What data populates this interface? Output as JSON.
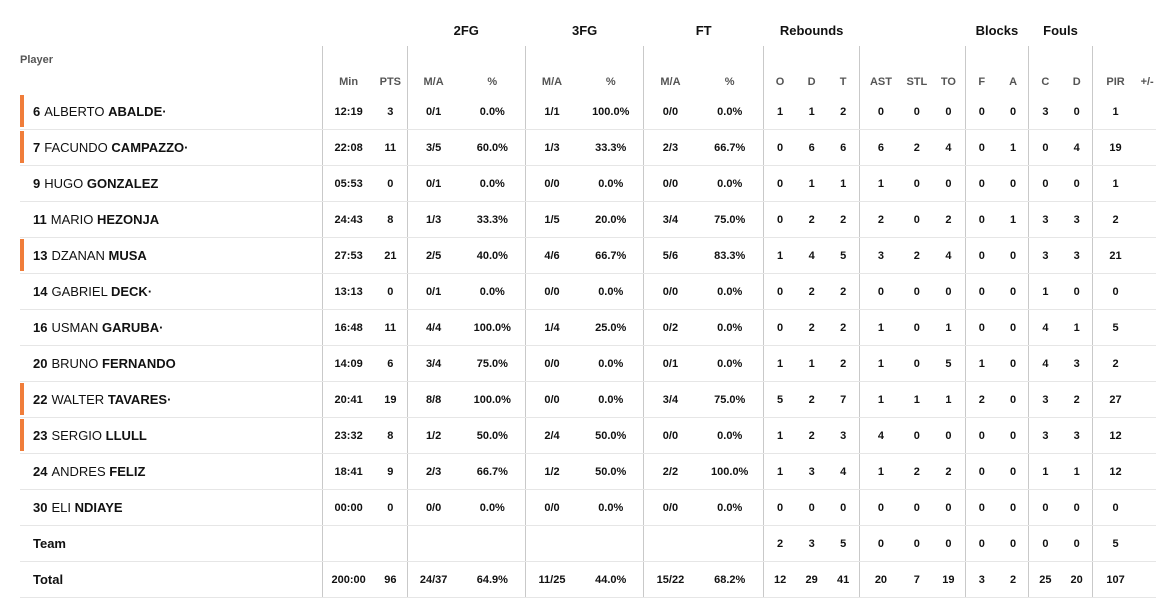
{
  "groups": {
    "fg2": "2FG",
    "fg3": "3FG",
    "ft": "FT",
    "rebounds": "Rebounds",
    "blocks": "Blocks",
    "fouls": "Fouls"
  },
  "headers": {
    "player": "Player",
    "min": "Min",
    "pts": "PTS",
    "ma": "M/A",
    "pct": "%",
    "o": "O",
    "d": "D",
    "t": "T",
    "ast": "AST",
    "stl": "STL",
    "to": "TO",
    "f": "F",
    "a": "A",
    "c": "C",
    "fd": "D",
    "pir": "PIR",
    "pm": "+/-"
  },
  "colors": {
    "starter_marker": "#f07d3a"
  },
  "players": [
    {
      "num": "6",
      "first": "ALBERTO",
      "last": "ABALDE",
      "mark": "·",
      "starter": true,
      "min": "12:19",
      "pts": "3",
      "fg2_ma": "0/1",
      "fg2_pct": "0.0%",
      "fg3_ma": "1/1",
      "fg3_pct": "100.0%",
      "ft_ma": "0/0",
      "ft_pct": "0.0%",
      "o": "1",
      "d": "1",
      "t": "2",
      "ast": "0",
      "stl": "0",
      "to": "0",
      "bf": "0",
      "ba": "0",
      "fc": "3",
      "fd": "0",
      "pir": "1",
      "pm": ""
    },
    {
      "num": "7",
      "first": "FACUNDO",
      "last": "CAMPAZZO",
      "mark": "·",
      "starter": true,
      "min": "22:08",
      "pts": "11",
      "fg2_ma": "3/5",
      "fg2_pct": "60.0%",
      "fg3_ma": "1/3",
      "fg3_pct": "33.3%",
      "ft_ma": "2/3",
      "ft_pct": "66.7%",
      "o": "0",
      "d": "6",
      "t": "6",
      "ast": "6",
      "stl": "2",
      "to": "4",
      "bf": "0",
      "ba": "1",
      "fc": "0",
      "fd": "4",
      "pir": "19",
      "pm": ""
    },
    {
      "num": "9",
      "first": "HUGO",
      "last": "GONZALEZ",
      "mark": "",
      "starter": false,
      "min": "05:53",
      "pts": "0",
      "fg2_ma": "0/1",
      "fg2_pct": "0.0%",
      "fg3_ma": "0/0",
      "fg3_pct": "0.0%",
      "ft_ma": "0/0",
      "ft_pct": "0.0%",
      "o": "0",
      "d": "1",
      "t": "1",
      "ast": "1",
      "stl": "0",
      "to": "0",
      "bf": "0",
      "ba": "0",
      "fc": "0",
      "fd": "0",
      "pir": "1",
      "pm": ""
    },
    {
      "num": "11",
      "first": "MARIO",
      "last": "HEZONJA",
      "mark": "",
      "starter": false,
      "min": "24:43",
      "pts": "8",
      "fg2_ma": "1/3",
      "fg2_pct": "33.3%",
      "fg3_ma": "1/5",
      "fg3_pct": "20.0%",
      "ft_ma": "3/4",
      "ft_pct": "75.0%",
      "o": "0",
      "d": "2",
      "t": "2",
      "ast": "2",
      "stl": "0",
      "to": "2",
      "bf": "0",
      "ba": "1",
      "fc": "3",
      "fd": "3",
      "pir": "2",
      "pm": ""
    },
    {
      "num": "13",
      "first": "DZANAN",
      "last": "MUSA",
      "mark": "",
      "starter": true,
      "min": "27:53",
      "pts": "21",
      "fg2_ma": "2/5",
      "fg2_pct": "40.0%",
      "fg3_ma": "4/6",
      "fg3_pct": "66.7%",
      "ft_ma": "5/6",
      "ft_pct": "83.3%",
      "o": "1",
      "d": "4",
      "t": "5",
      "ast": "3",
      "stl": "2",
      "to": "4",
      "bf": "0",
      "ba": "0",
      "fc": "3",
      "fd": "3",
      "pir": "21",
      "pm": ""
    },
    {
      "num": "14",
      "first": "GABRIEL",
      "last": "DECK",
      "mark": "·",
      "starter": false,
      "min": "13:13",
      "pts": "0",
      "fg2_ma": "0/1",
      "fg2_pct": "0.0%",
      "fg3_ma": "0/0",
      "fg3_pct": "0.0%",
      "ft_ma": "0/0",
      "ft_pct": "0.0%",
      "o": "0",
      "d": "2",
      "t": "2",
      "ast": "0",
      "stl": "0",
      "to": "0",
      "bf": "0",
      "ba": "0",
      "fc": "1",
      "fd": "0",
      "pir": "0",
      "pm": ""
    },
    {
      "num": "16",
      "first": "USMAN",
      "last": "GARUBA",
      "mark": "·",
      "starter": false,
      "min": "16:48",
      "pts": "11",
      "fg2_ma": "4/4",
      "fg2_pct": "100.0%",
      "fg3_ma": "1/4",
      "fg3_pct": "25.0%",
      "ft_ma": "0/2",
      "ft_pct": "0.0%",
      "o": "0",
      "d": "2",
      "t": "2",
      "ast": "1",
      "stl": "0",
      "to": "1",
      "bf": "0",
      "ba": "0",
      "fc": "4",
      "fd": "1",
      "pir": "5",
      "pm": ""
    },
    {
      "num": "20",
      "first": "BRUNO",
      "last": "FERNANDO",
      "mark": "",
      "starter": false,
      "min": "14:09",
      "pts": "6",
      "fg2_ma": "3/4",
      "fg2_pct": "75.0%",
      "fg3_ma": "0/0",
      "fg3_pct": "0.0%",
      "ft_ma": "0/1",
      "ft_pct": "0.0%",
      "o": "1",
      "d": "1",
      "t": "2",
      "ast": "1",
      "stl": "0",
      "to": "5",
      "bf": "1",
      "ba": "0",
      "fc": "4",
      "fd": "3",
      "pir": "2",
      "pm": ""
    },
    {
      "num": "22",
      "first": "WALTER",
      "last": "TAVARES",
      "mark": "·",
      "starter": true,
      "min": "20:41",
      "pts": "19",
      "fg2_ma": "8/8",
      "fg2_pct": "100.0%",
      "fg3_ma": "0/0",
      "fg3_pct": "0.0%",
      "ft_ma": "3/4",
      "ft_pct": "75.0%",
      "o": "5",
      "d": "2",
      "t": "7",
      "ast": "1",
      "stl": "1",
      "to": "1",
      "bf": "2",
      "ba": "0",
      "fc": "3",
      "fd": "2",
      "pir": "27",
      "pm": ""
    },
    {
      "num": "23",
      "first": "SERGIO",
      "last": "LLULL",
      "mark": "",
      "starter": true,
      "min": "23:32",
      "pts": "8",
      "fg2_ma": "1/2",
      "fg2_pct": "50.0%",
      "fg3_ma": "2/4",
      "fg3_pct": "50.0%",
      "ft_ma": "0/0",
      "ft_pct": "0.0%",
      "o": "1",
      "d": "2",
      "t": "3",
      "ast": "4",
      "stl": "0",
      "to": "0",
      "bf": "0",
      "ba": "0",
      "fc": "3",
      "fd": "3",
      "pir": "12",
      "pm": ""
    },
    {
      "num": "24",
      "first": "ANDRES",
      "last": "FELIZ",
      "mark": "",
      "starter": false,
      "min": "18:41",
      "pts": "9",
      "fg2_ma": "2/3",
      "fg2_pct": "66.7%",
      "fg3_ma": "1/2",
      "fg3_pct": "50.0%",
      "ft_ma": "2/2",
      "ft_pct": "100.0%",
      "o": "1",
      "d": "3",
      "t": "4",
      "ast": "1",
      "stl": "2",
      "to": "2",
      "bf": "0",
      "ba": "0",
      "fc": "1",
      "fd": "1",
      "pir": "12",
      "pm": ""
    },
    {
      "num": "30",
      "first": "ELI",
      "last": "NDIAYE",
      "mark": "",
      "starter": false,
      "min": "00:00",
      "pts": "0",
      "fg2_ma": "0/0",
      "fg2_pct": "0.0%",
      "fg3_ma": "0/0",
      "fg3_pct": "0.0%",
      "ft_ma": "0/0",
      "ft_pct": "0.0%",
      "o": "0",
      "d": "0",
      "t": "0",
      "ast": "0",
      "stl": "0",
      "to": "0",
      "bf": "0",
      "ba": "0",
      "fc": "0",
      "fd": "0",
      "pir": "0",
      "pm": ""
    }
  ],
  "team": {
    "label": "Team",
    "min": "",
    "pts": "",
    "fg2_ma": "",
    "fg2_pct": "",
    "fg3_ma": "",
    "fg3_pct": "",
    "ft_ma": "",
    "ft_pct": "",
    "o": "2",
    "d": "3",
    "t": "5",
    "ast": "0",
    "stl": "0",
    "to": "0",
    "bf": "0",
    "ba": "0",
    "fc": "0",
    "fd": "0",
    "pir": "5",
    "pm": ""
  },
  "total": {
    "label": "Total",
    "min": "200:00",
    "pts": "96",
    "fg2_ma": "24/37",
    "fg2_pct": "64.9%",
    "fg3_ma": "11/25",
    "fg3_pct": "44.0%",
    "ft_ma": "15/22",
    "ft_pct": "68.2%",
    "o": "12",
    "d": "29",
    "t": "41",
    "ast": "20",
    "stl": "7",
    "to": "19",
    "bf": "3",
    "ba": "2",
    "fc": "25",
    "fd": "20",
    "pir": "107",
    "pm": ""
  }
}
